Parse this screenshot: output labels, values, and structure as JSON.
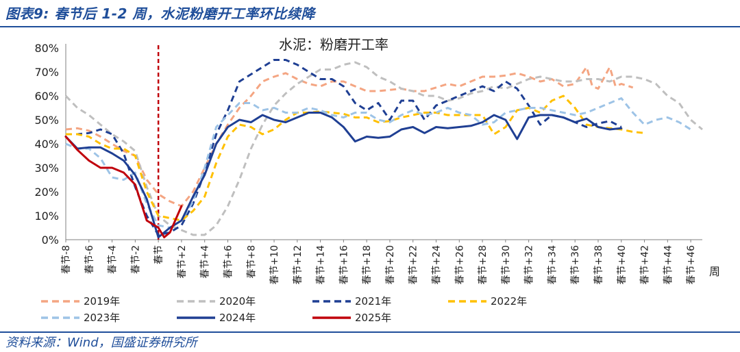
{
  "figure": {
    "title": "图表9: 春节后 1-2 周，水泥粉磨开工率环比续降",
    "source": "资料来源：Wind，国盛证券研究所"
  },
  "chart_data": {
    "type": "line",
    "title": "水泥：粉磨开工率",
    "xlabel": "周",
    "ylabel": "",
    "ylim": [
      0,
      80
    ],
    "yticks": [
      "0%",
      "10%",
      "20%",
      "30%",
      "40%",
      "50%",
      "60%",
      "70%",
      "80%"
    ],
    "x_range": [
      -8,
      47
    ],
    "xticks": [
      "春节-8",
      "春节-6",
      "春节-4",
      "春节-2",
      "春节",
      "春节+2",
      "春节+4",
      "春节+6",
      "春节+8",
      "春节+10",
      "春节+12",
      "春节+14",
      "春节+16",
      "春节+18",
      "春节+20",
      "春节+22",
      "春节+24",
      "春节+26",
      "春节+28",
      "春节+30",
      "春节+32",
      "春节+34",
      "春节+36",
      "春节+38",
      "春节+40",
      "春节+42",
      "春节+44",
      "春节+46"
    ],
    "marker_week": 0,
    "series": [
      {
        "name": "2019年",
        "color": "#f4a582",
        "dash": "dashed",
        "points": [
          [
            -8,
            46
          ],
          [
            -7,
            46.5
          ],
          [
            -6,
            45.5
          ],
          [
            -5,
            43
          ],
          [
            -4,
            40
          ],
          [
            -3,
            37
          ],
          [
            -2,
            35
          ],
          [
            -1,
            25
          ],
          [
            0,
            19
          ],
          [
            1,
            16
          ],
          [
            2,
            14
          ],
          [
            3,
            20
          ],
          [
            4,
            30
          ],
          [
            5,
            40
          ],
          [
            6,
            48
          ],
          [
            7,
            55
          ],
          [
            8,
            60
          ],
          [
            9,
            66
          ],
          [
            10,
            68
          ],
          [
            11,
            69.5
          ],
          [
            12,
            67
          ],
          [
            13,
            65
          ],
          [
            14,
            64
          ],
          [
            15,
            66
          ],
          [
            16,
            66
          ],
          [
            17,
            64
          ],
          [
            18,
            62
          ],
          [
            19,
            62
          ],
          [
            20,
            62.5
          ],
          [
            21,
            63
          ],
          [
            22,
            62
          ],
          [
            23,
            62
          ],
          [
            24,
            63.5
          ],
          [
            25,
            65
          ],
          [
            26,
            64
          ],
          [
            27,
            66
          ],
          [
            28,
            68
          ],
          [
            29,
            68
          ],
          [
            30,
            68.5
          ],
          [
            31,
            69.5
          ],
          [
            32,
            68
          ],
          [
            33,
            66
          ],
          [
            34,
            67
          ],
          [
            35,
            64
          ],
          [
            36,
            65
          ],
          [
            37,
            72
          ],
          [
            37.5,
            64
          ],
          [
            38,
            63
          ],
          [
            39,
            72
          ],
          [
            39.5,
            64
          ],
          [
            40,
            65
          ],
          [
            41,
            63.5
          ]
        ]
      },
      {
        "name": "2020年",
        "color": "#bfbfbf",
        "dash": "dashed",
        "points": [
          [
            -8,
            60
          ],
          [
            -7,
            55
          ],
          [
            -6,
            52
          ],
          [
            -5,
            48
          ],
          [
            -4,
            44
          ],
          [
            -3,
            41
          ],
          [
            -2,
            37
          ],
          [
            -1,
            22
          ],
          [
            0,
            10
          ],
          [
            1,
            6
          ],
          [
            2,
            4
          ],
          [
            3,
            2
          ],
          [
            4,
            2
          ],
          [
            5,
            6
          ],
          [
            6,
            14
          ],
          [
            7,
            25
          ],
          [
            8,
            38
          ],
          [
            9,
            48
          ],
          [
            10,
            56
          ],
          [
            11,
            61
          ],
          [
            12,
            65
          ],
          [
            13,
            68
          ],
          [
            14,
            71
          ],
          [
            15,
            71
          ],
          [
            16,
            73
          ],
          [
            17,
            74
          ],
          [
            18,
            72
          ],
          [
            19,
            68
          ],
          [
            20,
            66
          ],
          [
            21,
            63
          ],
          [
            22,
            62
          ],
          [
            23,
            60
          ],
          [
            24,
            60
          ],
          [
            25,
            58
          ],
          [
            26,
            59
          ],
          [
            27,
            61
          ],
          [
            28,
            62
          ],
          [
            29,
            64
          ],
          [
            30,
            63
          ],
          [
            31,
            65
          ],
          [
            32,
            67
          ],
          [
            33,
            68
          ],
          [
            34,
            67
          ],
          [
            35,
            66
          ],
          [
            36,
            66
          ],
          [
            37,
            67
          ],
          [
            38,
            67
          ],
          [
            39,
            66
          ],
          [
            40,
            68
          ],
          [
            41,
            68
          ],
          [
            42,
            67
          ],
          [
            43,
            65
          ],
          [
            44,
            60
          ],
          [
            45,
            57
          ],
          [
            46,
            50
          ],
          [
            47,
            46
          ]
        ]
      },
      {
        "name": "2021年",
        "color": "#1f3f93",
        "dash": "dashed",
        "points": [
          [
            -8,
            44
          ],
          [
            -7,
            44
          ],
          [
            -6,
            44.5
          ],
          [
            -5,
            46
          ],
          [
            -4,
            44
          ],
          [
            -3,
            36
          ],
          [
            -2,
            22
          ],
          [
            -1,
            10
          ],
          [
            0,
            2
          ],
          [
            1,
            3
          ],
          [
            2,
            6
          ],
          [
            3,
            15
          ],
          [
            4,
            28
          ],
          [
            5,
            44
          ],
          [
            6,
            54
          ],
          [
            7,
            66
          ],
          [
            8,
            69
          ],
          [
            9,
            72
          ],
          [
            10,
            75
          ],
          [
            11,
            75
          ],
          [
            12,
            73
          ],
          [
            13,
            70
          ],
          [
            14,
            67
          ],
          [
            15,
            67
          ],
          [
            16,
            64
          ],
          [
            17,
            57
          ],
          [
            18,
            54
          ],
          [
            19,
            57
          ],
          [
            20,
            50
          ],
          [
            21,
            58
          ],
          [
            22,
            58
          ],
          [
            23,
            50
          ],
          [
            24,
            56
          ],
          [
            25,
            58
          ],
          [
            26,
            60
          ],
          [
            27,
            62
          ],
          [
            28,
            64
          ],
          [
            29,
            62
          ],
          [
            30,
            66
          ],
          [
            31,
            63
          ],
          [
            32,
            56
          ],
          [
            33,
            48
          ],
          [
            34,
            52
          ],
          [
            35,
            51
          ],
          [
            36,
            49
          ],
          [
            37,
            47
          ],
          [
            38,
            48.5
          ],
          [
            39,
            49.5
          ],
          [
            40,
            47
          ]
        ]
      },
      {
        "name": "2022年",
        "color": "#ffc000",
        "dash": "dashed",
        "points": [
          [
            -8,
            44
          ],
          [
            -7,
            44
          ],
          [
            -6,
            43
          ],
          [
            -5,
            40
          ],
          [
            -4,
            38
          ],
          [
            -3,
            38
          ],
          [
            -2,
            35
          ],
          [
            -1,
            20
          ],
          [
            0,
            10
          ],
          [
            1,
            9
          ],
          [
            2,
            8
          ],
          [
            3,
            12
          ],
          [
            4,
            18
          ],
          [
            5,
            32
          ],
          [
            6,
            43
          ],
          [
            7,
            48
          ],
          [
            8,
            47
          ],
          [
            9,
            44
          ],
          [
            10,
            46
          ],
          [
            11,
            50
          ],
          [
            12,
            53
          ],
          [
            13,
            53
          ],
          [
            14,
            53.5
          ],
          [
            15,
            53
          ],
          [
            16,
            52.5
          ],
          [
            17,
            51
          ],
          [
            18,
            51
          ],
          [
            19,
            49
          ],
          [
            20,
            49.5
          ],
          [
            21,
            51
          ],
          [
            22,
            52
          ],
          [
            23,
            53
          ],
          [
            24,
            53
          ],
          [
            25,
            52
          ],
          [
            26,
            52
          ],
          [
            27,
            52
          ],
          [
            28,
            52
          ],
          [
            29,
            44
          ],
          [
            30,
            47
          ],
          [
            31,
            54
          ],
          [
            32,
            55
          ],
          [
            33,
            53
          ],
          [
            34,
            58
          ],
          [
            35,
            60
          ],
          [
            36,
            55
          ],
          [
            37,
            48
          ],
          [
            38,
            47
          ],
          [
            39,
            46.5
          ],
          [
            40,
            46
          ],
          [
            41,
            45
          ],
          [
            42,
            44.5
          ]
        ]
      },
      {
        "name": "2023年",
        "color": "#9dc3e6",
        "dash": "dashed",
        "points": [
          [
            -8,
            40
          ],
          [
            -7,
            38
          ],
          [
            -6,
            38
          ],
          [
            -5,
            34
          ],
          [
            -4,
            26
          ],
          [
            -3,
            25
          ],
          [
            -2,
            28
          ],
          [
            -1,
            15
          ],
          [
            0,
            6
          ],
          [
            1,
            5
          ],
          [
            2,
            8
          ],
          [
            3,
            16
          ],
          [
            4,
            30
          ],
          [
            5,
            47
          ],
          [
            6,
            52
          ],
          [
            7,
            57
          ],
          [
            8,
            57
          ],
          [
            9,
            54
          ],
          [
            10,
            55
          ],
          [
            11,
            53
          ],
          [
            12,
            53
          ],
          [
            13,
            55
          ],
          [
            14,
            54
          ],
          [
            15,
            52
          ],
          [
            16,
            51
          ],
          [
            17,
            53
          ],
          [
            18,
            53
          ],
          [
            19,
            50
          ],
          [
            20,
            49
          ],
          [
            21,
            52
          ],
          [
            22,
            54
          ],
          [
            23,
            52
          ],
          [
            24,
            53
          ],
          [
            25,
            55
          ],
          [
            26,
            53
          ],
          [
            27,
            52
          ],
          [
            28,
            48
          ],
          [
            29,
            49
          ],
          [
            30,
            53
          ],
          [
            31,
            54
          ],
          [
            32,
            55
          ],
          [
            33,
            55
          ],
          [
            34,
            54
          ],
          [
            35,
            53
          ],
          [
            36,
            52
          ],
          [
            37,
            53
          ],
          [
            38,
            55
          ],
          [
            39,
            57
          ],
          [
            40,
            59
          ],
          [
            41,
            53
          ],
          [
            42,
            48
          ],
          [
            43,
            50
          ],
          [
            44,
            51
          ],
          [
            45,
            49
          ],
          [
            46,
            46
          ]
        ]
      },
      {
        "name": "2024年",
        "color": "#1f3f93",
        "dash": "solid",
        "points": [
          [
            -8,
            43
          ],
          [
            -7,
            38
          ],
          [
            -6,
            38.5
          ],
          [
            -5,
            38.5
          ],
          [
            -4,
            36
          ],
          [
            -3,
            33
          ],
          [
            -2,
            27
          ],
          [
            -1,
            17
          ],
          [
            0,
            1
          ],
          [
            1,
            5
          ],
          [
            2,
            8
          ],
          [
            3,
            18
          ],
          [
            4,
            27
          ],
          [
            5,
            40
          ],
          [
            6,
            47
          ],
          [
            7,
            50
          ],
          [
            8,
            49
          ],
          [
            9,
            52
          ],
          [
            10,
            50
          ],
          [
            11,
            49
          ],
          [
            12,
            51
          ],
          [
            13,
            53
          ],
          [
            14,
            53
          ],
          [
            15,
            51
          ],
          [
            16,
            47
          ],
          [
            17,
            41
          ],
          [
            18,
            43
          ],
          [
            19,
            42.5
          ],
          [
            20,
            43
          ],
          [
            21,
            46
          ],
          [
            22,
            47
          ],
          [
            23,
            44.5
          ],
          [
            24,
            47
          ],
          [
            25,
            46.5
          ],
          [
            26,
            47
          ],
          [
            27,
            47.5
          ],
          [
            28,
            49
          ],
          [
            29,
            52
          ],
          [
            30,
            50
          ],
          [
            31,
            42
          ],
          [
            32,
            51
          ],
          [
            33,
            52
          ],
          [
            34,
            52
          ],
          [
            35,
            51
          ],
          [
            36,
            49
          ],
          [
            37,
            50.5
          ],
          [
            38,
            47
          ],
          [
            39,
            46
          ],
          [
            40,
            46.5
          ]
        ]
      },
      {
        "name": "2025年",
        "color": "#c0000b",
        "dash": "solid",
        "points": [
          [
            -8,
            43
          ],
          [
            -7,
            37.5
          ],
          [
            -6,
            33
          ],
          [
            -5,
            30
          ],
          [
            -4,
            30
          ],
          [
            -3,
            28
          ],
          [
            -2,
            23
          ],
          [
            -1,
            8
          ],
          [
            0,
            5
          ],
          [
            0.5,
            1
          ],
          [
            1,
            3
          ],
          [
            2,
            14
          ]
        ]
      }
    ]
  }
}
